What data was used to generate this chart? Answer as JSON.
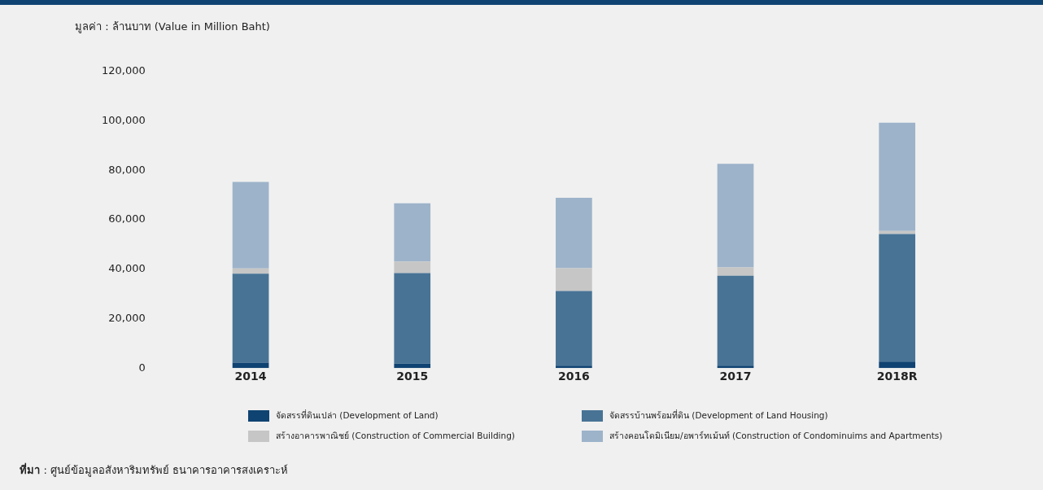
{
  "chart_data": {
    "type": "bar",
    "ylabel": "มูลค่า : ล้านบาท (Value in Million Baht)",
    "categories": [
      "2014",
      "2015",
      "2016",
      "2017",
      "2018R"
    ],
    "stacked": true,
    "ylim": [
      0,
      120000
    ],
    "yticks": [
      {
        "value": 0,
        "label": "0"
      },
      {
        "value": 20000,
        "label": "20,000"
      },
      {
        "value": 40000,
        "label": "40,000"
      },
      {
        "value": 60000,
        "label": "60,000"
      },
      {
        "value": 80000,
        "label": "80,000"
      },
      {
        "value": 100000,
        "label": "100,000"
      },
      {
        "value": 120000,
        "label": "120,000"
      }
    ],
    "grid": false,
    "legend": "bottom",
    "series": [
      {
        "name": "จัดสรรที่ดินเปล่า (Development of Land)",
        "color": "#0f4372",
        "values": [
          2200,
          1800,
          1000,
          1000,
          2600
        ]
      },
      {
        "name": "จัดสรรบ้านพร้อมที่ดิน (Development of Land Housing)",
        "color": "#487395",
        "values": [
          36000,
          36600,
          30200,
          36400,
          51600
        ]
      },
      {
        "name": "สร้างอาคารพาณิชย์ (Construction of Commercial Building)",
        "color": "#c6c6c6",
        "values": [
          2100,
          4700,
          9200,
          3300,
          1300
        ]
      },
      {
        "name": "สร้างคอนโดมิเนียม/อพาร์ทเม้นท์ (Construction of Condominuims and Apartments)",
        "color": "#9db3ca",
        "values": [
          35000,
          23600,
          28500,
          41900,
          43800
        ]
      }
    ],
    "annotations": [
      "ที่มา : ศูนย์ข้อมูลอสังหาริมทรัพย์ ธนาคารอาคารสงเคราะห์"
    ]
  }
}
